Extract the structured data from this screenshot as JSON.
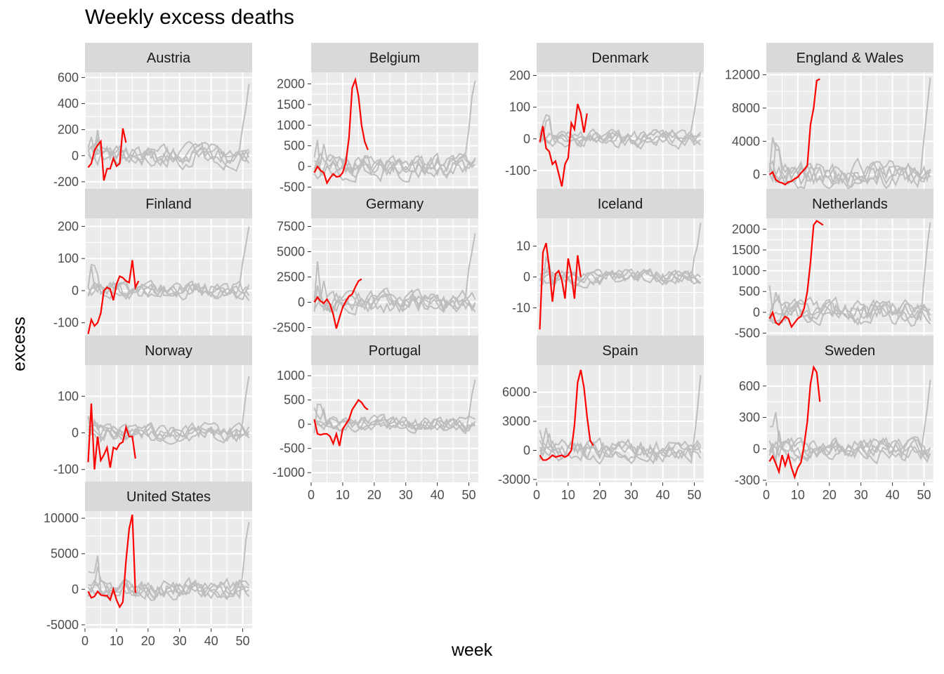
{
  "chart_data": {
    "type": "line",
    "title": "Weekly excess deaths",
    "xlabel": "week",
    "ylabel": "excess",
    "xlim": [
      0,
      53
    ],
    "xticks": [
      0,
      10,
      20,
      30,
      40,
      50
    ],
    "colors": {
      "current": "#ff0000",
      "history": "#bebebe",
      "panel_bg": "#ebebeb",
      "strip_bg": "#d9d9d9",
      "grid": "#ffffff"
    },
    "panels": [
      {
        "name": "Austria",
        "ylim": [
          -260,
          640
        ],
        "yticks": [
          -200,
          0,
          200,
          400,
          600
        ],
        "current": {
          "x": [
            1,
            2,
            3,
            4,
            5,
            6,
            7,
            8,
            9,
            10,
            11,
            12,
            13
          ],
          "y": [
            -90,
            -60,
            40,
            80,
            110,
            -190,
            -100,
            -100,
            -20,
            -80,
            -60,
            210,
            100
          ]
        }
      },
      {
        "name": "Belgium",
        "ylim": [
          -560,
          2280
        ],
        "yticks": [
          -500,
          0,
          500,
          1000,
          1500,
          2000
        ],
        "current": {
          "x": [
            1,
            2,
            3,
            4,
            5,
            6,
            7,
            8,
            9,
            10,
            11,
            12,
            13,
            14,
            15,
            16,
            17,
            18
          ],
          "y": [
            -150,
            0,
            -100,
            -150,
            -400,
            -280,
            -180,
            -250,
            -240,
            -150,
            100,
            700,
            1900,
            2100,
            1700,
            1000,
            600,
            400
          ]
        }
      },
      {
        "name": "Denmark",
        "ylim": [
          -160,
          210
        ],
        "yticks": [
          -100,
          0,
          100,
          200
        ],
        "current": {
          "x": [
            1,
            2,
            3,
            4,
            5,
            6,
            7,
            8,
            9,
            10,
            11,
            12,
            13,
            14,
            15,
            16
          ],
          "y": [
            -10,
            40,
            -30,
            -40,
            -80,
            -70,
            -110,
            -150,
            -80,
            -60,
            50,
            30,
            110,
            80,
            20,
            80
          ]
        }
      },
      {
        "name": "England & Wales",
        "ylim": [
          -1800,
          12300
        ],
        "yticks": [
          0,
          4000,
          8000,
          12000
        ],
        "current": {
          "x": [
            1,
            2,
            3,
            4,
            5,
            6,
            7,
            8,
            9,
            10,
            11,
            12,
            13,
            14,
            15,
            16,
            17
          ],
          "y": [
            0,
            300,
            -600,
            -900,
            -1000,
            -1200,
            -900,
            -800,
            -500,
            -300,
            200,
            600,
            1100,
            6000,
            8000,
            11300,
            11500
          ]
        }
      },
      {
        "name": "Finland",
        "ylim": [
          -140,
          225
        ],
        "yticks": [
          -100,
          0,
          100,
          200
        ],
        "current": {
          "x": [
            1,
            2,
            3,
            4,
            5,
            6,
            7,
            8,
            9,
            10,
            11,
            12,
            13,
            14,
            15,
            16,
            17
          ],
          "y": [
            -135,
            -90,
            -110,
            -100,
            -70,
            0,
            10,
            5,
            -30,
            20,
            45,
            40,
            30,
            25,
            95,
            10,
            30
          ]
        }
      },
      {
        "name": "Germany",
        "ylim": [
          -3300,
          8300
        ],
        "yticks": [
          -2500,
          0,
          2500,
          5000,
          7500
        ],
        "current": {
          "x": [
            1,
            2,
            3,
            4,
            5,
            6,
            7,
            8,
            9,
            10,
            11,
            12,
            13,
            14,
            15,
            16
          ],
          "y": [
            0,
            500,
            100,
            -100,
            300,
            -200,
            -1200,
            -2600,
            -1500,
            -500,
            100,
            600,
            800,
            1500,
            2100,
            2300
          ]
        }
      },
      {
        "name": "Iceland",
        "ylim": [
          -19,
          19
        ],
        "yticks": [
          -10,
          0,
          10
        ],
        "current": {
          "x": [
            1,
            2,
            3,
            4,
            5,
            6,
            7,
            8,
            9,
            10,
            11,
            12,
            13,
            14
          ],
          "y": [
            -17,
            8,
            11,
            3,
            -8,
            1,
            2,
            -1,
            -7,
            6,
            1,
            -7,
            7,
            0
          ]
        }
      },
      {
        "name": "Netherlands",
        "ylim": [
          -560,
          2260
        ],
        "yticks": [
          -500,
          0,
          500,
          1000,
          1500,
          2000
        ],
        "current": {
          "x": [
            1,
            2,
            3,
            4,
            5,
            6,
            7,
            8,
            9,
            10,
            11,
            12,
            13,
            14,
            15,
            16,
            17,
            18
          ],
          "y": [
            -150,
            0,
            -250,
            -300,
            -200,
            -100,
            -150,
            -350,
            -250,
            -150,
            -100,
            100,
            500,
            1200,
            2100,
            2200,
            2150,
            2100
          ]
        }
      },
      {
        "name": "Norway",
        "ylim": [
          -135,
          185
        ],
        "yticks": [
          -100,
          0,
          100
        ],
        "current": {
          "x": [
            1,
            2,
            3,
            4,
            5,
            6,
            7,
            8,
            9,
            10,
            11,
            12,
            13,
            14,
            15,
            16
          ],
          "y": [
            -80,
            80,
            -100,
            -10,
            -75,
            -60,
            -40,
            -95,
            -40,
            -45,
            -30,
            -25,
            15,
            -10,
            -10,
            -70
          ]
        }
      },
      {
        "name": "Portugal",
        "ylim": [
          -1200,
          1220
        ],
        "yticks": [
          -1000,
          -500,
          0,
          500,
          1000
        ],
        "current": {
          "x": [
            1,
            2,
            3,
            4,
            5,
            6,
            7,
            8,
            9,
            10,
            11,
            12,
            13,
            14,
            15,
            16,
            17,
            18
          ],
          "y": [
            100,
            -200,
            -220,
            -200,
            -200,
            -250,
            -400,
            -200,
            -450,
            -100,
            0,
            100,
            300,
            400,
            500,
            450,
            350,
            300
          ]
        }
      },
      {
        "name": "Spain",
        "ylim": [
          -3300,
          8800
        ],
        "yticks": [
          -3000,
          0,
          3000,
          6000
        ],
        "current": {
          "x": [
            1,
            2,
            3,
            4,
            5,
            6,
            7,
            8,
            9,
            10,
            11,
            12,
            13,
            14,
            15,
            16,
            17,
            18
          ],
          "y": [
            -500,
            -1000,
            -1000,
            -800,
            -500,
            -700,
            -600,
            -500,
            -700,
            -500,
            0,
            2600,
            7000,
            8300,
            6500,
            3500,
            1000,
            500
          ]
        }
      },
      {
        "name": "Sweden",
        "ylim": [
          -320,
          800
        ],
        "yticks": [
          -300,
          0,
          300,
          600
        ],
        "current": {
          "x": [
            1,
            2,
            3,
            4,
            5,
            6,
            7,
            8,
            9,
            10,
            11,
            12,
            13,
            14,
            15,
            16,
            17
          ],
          "y": [
            -120,
            -70,
            -140,
            -220,
            -60,
            -160,
            -60,
            -180,
            -270,
            -180,
            -130,
            40,
            260,
            620,
            780,
            730,
            450
          ]
        }
      },
      {
        "name": "United States",
        "ylim": [
          -5500,
          11000
        ],
        "yticks": [
          -5000,
          0,
          5000,
          10000
        ],
        "current": {
          "x": [
            1,
            2,
            3,
            4,
            5,
            6,
            7,
            8,
            9,
            10,
            11,
            12,
            13,
            14,
            15,
            16
          ],
          "y": [
            -300,
            -1200,
            -1000,
            -300,
            -800,
            -900,
            -900,
            -1500,
            0,
            -1500,
            -2500,
            -1800,
            4000,
            8500,
            10500,
            -500
          ]
        }
      }
    ]
  }
}
